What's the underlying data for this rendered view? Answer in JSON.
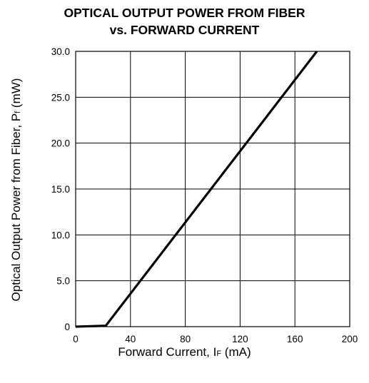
{
  "chart_data": {
    "type": "line",
    "title": [
      "OPTICAL OUTPUT POWER FROM FIBER",
      "vs. FORWARD CURRENT"
    ],
    "xlabel": {
      "main": "Forward Current, I",
      "sub": "F",
      "unit": " (mA)"
    },
    "ylabel": {
      "main": "Optical Output Power from Fiber, P",
      "sub": "f",
      "unit": " (mW)"
    },
    "xlim": [
      0,
      200
    ],
    "ylim": [
      0,
      30
    ],
    "x_ticks": [
      0,
      40,
      80,
      120,
      160,
      200
    ],
    "x_tick_labels": [
      "0",
      "40",
      "80",
      "120",
      "160",
      "200"
    ],
    "y_ticks": [
      0,
      5,
      10,
      15,
      20,
      25,
      30
    ],
    "y_tick_labels": [
      "0",
      "5.0",
      "10.0",
      "15.0",
      "20.0",
      "25.0",
      "30.0"
    ],
    "grid": true,
    "series": [
      {
        "x": [
          0,
          22,
          176
        ],
        "y": [
          0,
          0.1,
          30
        ]
      }
    ]
  }
}
